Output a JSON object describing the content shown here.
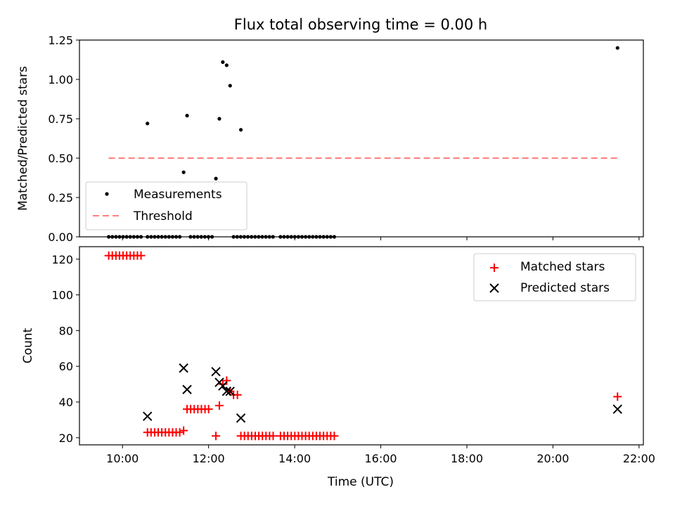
{
  "title": "Flux total observing time = 0.00 h",
  "chart_data": [
    {
      "type": "scatter",
      "ylabel": "Matched/Predicted stars",
      "xlim": [
        9.0,
        22.1
      ],
      "ylim": [
        0.0,
        1.25
      ],
      "yticks": [
        0.0,
        0.25,
        0.5,
        0.75,
        1.0,
        1.25
      ],
      "ytick_labels": [
        "0.00",
        "0.25",
        "0.50",
        "0.75",
        "1.00",
        "1.25"
      ],
      "legend": {
        "position": "lower-left",
        "entries": [
          "Measurements",
          "Threshold"
        ]
      },
      "threshold": {
        "name": "Threshold",
        "value": 0.5,
        "x_range": [
          9.68,
          21.5
        ],
        "color": "#ff7f7f"
      },
      "series": [
        {
          "name": "Measurements",
          "color": "#000000",
          "x": [
            10.58,
            11.42,
            11.5,
            12.17,
            12.25,
            12.33,
            12.42,
            12.5,
            12.75,
            21.5
          ],
          "y": [
            0.72,
            0.41,
            0.77,
            0.37,
            0.75,
            1.11,
            1.09,
            0.96,
            0.68,
            1.2
          ]
        }
      ],
      "zero_runs": [
        [
          9.68,
          10.5
        ],
        [
          10.58,
          11.33
        ],
        [
          11.58,
          12.08
        ],
        [
          12.58,
          13.5
        ],
        [
          13.67,
          14.92
        ]
      ]
    },
    {
      "type": "scatter",
      "xlabel": "Time (UTC)",
      "ylabel": "Count",
      "xlim": [
        9.0,
        22.1
      ],
      "ylim": [
        16,
        127
      ],
      "yticks": [
        20,
        40,
        60,
        80,
        100,
        120
      ],
      "ytick_labels": [
        "20",
        "40",
        "60",
        "80",
        "100",
        "120"
      ],
      "xticks": [
        10,
        12,
        14,
        16,
        18,
        20,
        22
      ],
      "xtick_labels": [
        "10:00",
        "12:00",
        "14:00",
        "16:00",
        "18:00",
        "20:00",
        "22:00"
      ],
      "legend": {
        "position": "top-right",
        "entries": [
          "Matched stars",
          "Predicted stars"
        ]
      },
      "series": [
        {
          "name": "Matched stars",
          "color": "#ff0000",
          "marker": "plus",
          "runs": [
            {
              "x_range": [
                9.68,
                10.5
              ],
              "y": 122
            },
            {
              "x_range": [
                10.58,
                11.33
              ],
              "y": 23
            },
            {
              "x_range": [
                11.5,
                12.08
              ],
              "y": 36
            },
            {
              "x_range": [
                12.75,
                13.5
              ],
              "y": 21
            },
            {
              "x_range": [
                13.67,
                14.92
              ],
              "y": 21
            }
          ],
          "x": [
            11.42,
            12.17,
            12.25,
            12.33,
            12.42,
            12.5,
            12.58,
            12.67,
            21.5
          ],
          "y": [
            24,
            21,
            38,
            50,
            52,
            46,
            44,
            44,
            43
          ]
        },
        {
          "name": "Predicted stars",
          "color": "#000000",
          "marker": "x",
          "x": [
            10.58,
            11.42,
            11.5,
            12.17,
            12.25,
            12.33,
            12.42,
            12.5,
            12.75,
            21.5
          ],
          "y": [
            32,
            59,
            47,
            57,
            51,
            49,
            46,
            46,
            31,
            36
          ]
        }
      ]
    }
  ]
}
